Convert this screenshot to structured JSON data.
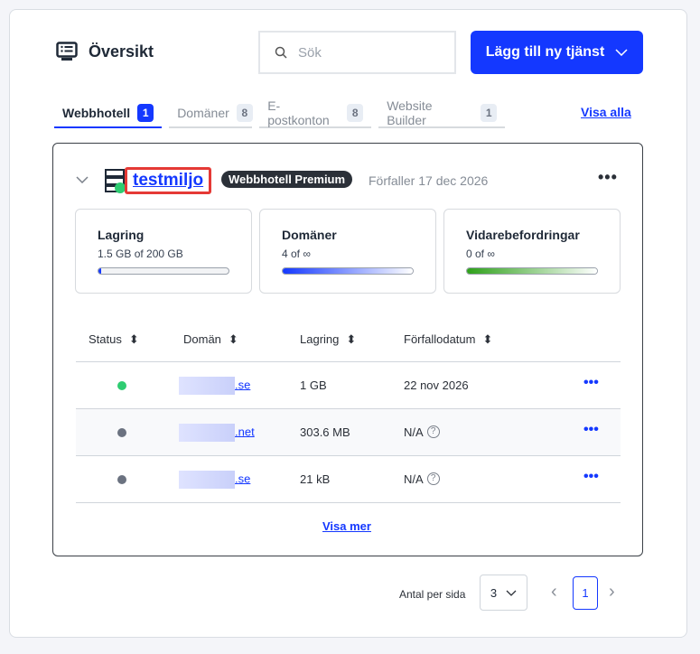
{
  "header": {
    "title": "Översikt",
    "search_placeholder": "Sök",
    "add_button": "Lägg till ny tjänst"
  },
  "tabs": [
    {
      "label": "Webbhotell",
      "count": "1"
    },
    {
      "label": "Domäner",
      "count": "8"
    },
    {
      "label": "E-postkonton",
      "count": "8"
    },
    {
      "label": "Website Builder",
      "count": "1"
    }
  ],
  "visa_alla": "Visa alla",
  "service": {
    "name": "testmiljo",
    "plan": "Webbhotell Premium",
    "expires": "Förfaller 17 dec 2026",
    "status_color": "#2ecc71",
    "stats": [
      {
        "label": "Lagring",
        "value": "1.5 GB of 200 GB",
        "fill_percent": 0.75
      },
      {
        "label": "Domäner",
        "value": "4 of ∞"
      },
      {
        "label": "Vidarebefordringar",
        "value": "0 of ∞"
      }
    ]
  },
  "table": {
    "headers": [
      "Status",
      "Domän",
      "Lagring",
      "Förfallodatum"
    ],
    "rows": [
      {
        "status": "active",
        "status_color": "#2ecc71",
        "domain_suffix": ".se",
        "storage": "1 GB",
        "expiry": "22 nov 2026"
      },
      {
        "status": "inactive",
        "status_color": "#6b7280",
        "domain_suffix": ".net",
        "storage": "303.6 MB",
        "expiry": "N/A"
      },
      {
        "status": "inactive",
        "status_color": "#6b7280",
        "domain_suffix": ".se",
        "storage": "21 kB",
        "expiry": "N/A"
      }
    ]
  },
  "visa_mer": "Visa mer",
  "pagination": {
    "per_page_label": "Antal per sida",
    "per_page": "3",
    "current_page": "1"
  },
  "colors": {
    "accent": "#1438ff",
    "highlight": "#e53935"
  }
}
